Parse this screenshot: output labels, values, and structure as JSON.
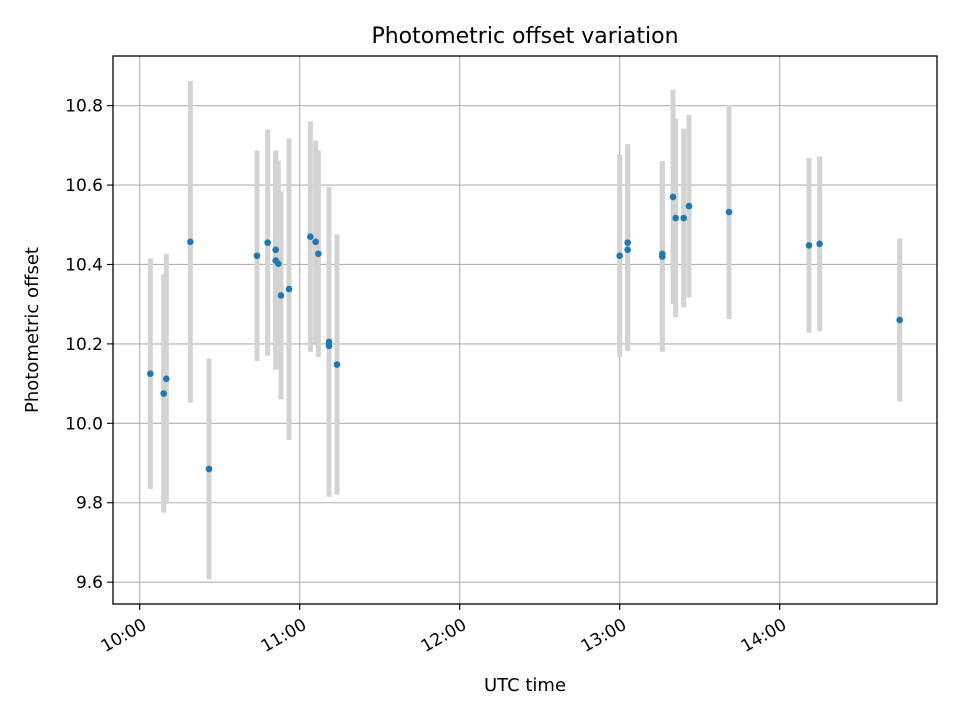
{
  "chart_data": {
    "type": "scatter",
    "title": "Photometric offset variation",
    "xlabel": "UTC time",
    "ylabel": "Photometric offset",
    "x_unit": "UTC time (HH:MM)",
    "xlim": [
      "09:50",
      "14:59"
    ],
    "ylim": [
      9.545,
      10.925
    ],
    "x_ticks": [
      "10:00",
      "11:00",
      "12:00",
      "13:00",
      "14:00"
    ],
    "y_ticks": [
      9.6,
      9.8,
      10.0,
      10.2,
      10.4,
      10.6,
      10.8
    ],
    "y_tick_labels": [
      "9.6",
      "9.8",
      "10.0",
      "10.2",
      "10.4",
      "10.6",
      "10.8"
    ],
    "grid": true,
    "marker_color": "#1f77b4",
    "errorbar_color": "#d3d3d3",
    "points": [
      {
        "x": "10:04",
        "y": 10.125,
        "yerr": 0.29
      },
      {
        "x": "10:09",
        "y": 10.075,
        "yerr": 0.3
      },
      {
        "x": "10:10",
        "y": 10.112,
        "yerr": 0.315
      },
      {
        "x": "10:19",
        "y": 10.457,
        "yerr": 0.405
      },
      {
        "x": "10:26",
        "y": 9.885,
        "yerr": 0.278
      },
      {
        "x": "10:44",
        "y": 10.422,
        "yerr": 0.265
      },
      {
        "x": "10:48",
        "y": 10.455,
        "yerr": 0.285
      },
      {
        "x": "10:51",
        "y": 10.437,
        "yerr": 0.25
      },
      {
        "x": "10:51",
        "y": 10.41,
        "yerr": 0.275
      },
      {
        "x": "10:52",
        "y": 10.402,
        "yerr": 0.26
      },
      {
        "x": "10:53",
        "y": 10.322,
        "yerr": 0.262
      },
      {
        "x": "10:56",
        "y": 10.338,
        "yerr": 0.38
      },
      {
        "x": "11:04",
        "y": 10.47,
        "yerr": 0.29
      },
      {
        "x": "11:06",
        "y": 10.457,
        "yerr": 0.255
      },
      {
        "x": "11:07",
        "y": 10.427,
        "yerr": 0.26
      },
      {
        "x": "11:11",
        "y": 10.205,
        "yerr": 0.39
      },
      {
        "x": "11:11",
        "y": 10.195,
        "yerr": 0.37
      },
      {
        "x": "11:14",
        "y": 10.148,
        "yerr": 0.328
      },
      {
        "x": "13:00",
        "y": 10.422,
        "yerr": 0.255
      },
      {
        "x": "13:03",
        "y": 10.455,
        "yerr": 0.248
      },
      {
        "x": "13:03",
        "y": 10.437,
        "yerr": 0.255
      },
      {
        "x": "13:16",
        "y": 10.42,
        "yerr": 0.24
      },
      {
        "x": "13:16",
        "y": 10.427,
        "yerr": 0.233
      },
      {
        "x": "13:20",
        "y": 10.57,
        "yerr": 0.27
      },
      {
        "x": "13:21",
        "y": 10.517,
        "yerr": 0.25
      },
      {
        "x": "13:24",
        "y": 10.517,
        "yerr": 0.225
      },
      {
        "x": "13:26",
        "y": 10.547,
        "yerr": 0.23
      },
      {
        "x": "13:41",
        "y": 10.532,
        "yerr": 0.27
      },
      {
        "x": "14:11",
        "y": 10.448,
        "yerr": 0.22
      },
      {
        "x": "14:15",
        "y": 10.452,
        "yerr": 0.22
      },
      {
        "x": "14:45",
        "y": 10.26,
        "yerr": 0.205
      }
    ]
  }
}
